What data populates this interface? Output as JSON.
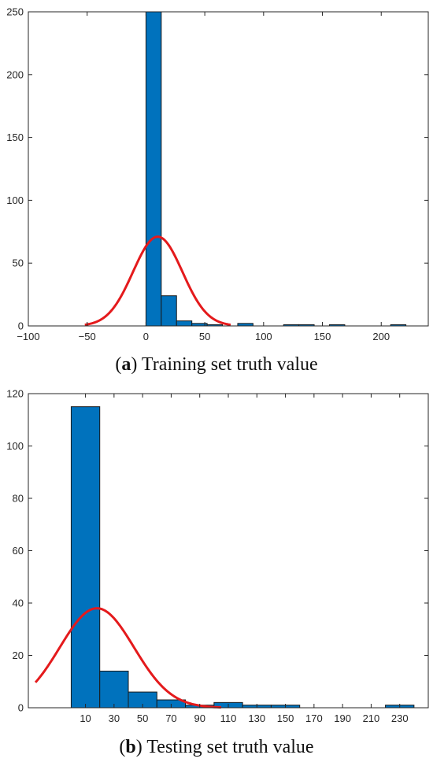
{
  "chart_data": [
    {
      "type": "bar",
      "caption_letter": "a",
      "caption_text": "Training set truth value",
      "xlim": [
        -100,
        240
      ],
      "ylim": [
        0,
        250
      ],
      "x_ticks": [
        -100,
        -50,
        0,
        50,
        100,
        150,
        200
      ],
      "x_tick_labels": [
        "−100",
        "−50",
        "0",
        "50",
        "100",
        "150",
        "200"
      ],
      "y_ticks": [
        0,
        50,
        100,
        150,
        200,
        250
      ],
      "y_tick_labels": [
        "0",
        "50",
        "100",
        "150",
        "200",
        "250"
      ],
      "bins": [
        {
          "x0": 0,
          "x1": 13,
          "count": 250
        },
        {
          "x0": 13,
          "x1": 26,
          "count": 24
        },
        {
          "x0": 26,
          "x1": 39,
          "count": 4
        },
        {
          "x0": 39,
          "x1": 52,
          "count": 2
        },
        {
          "x0": 52,
          "x1": 65,
          "count": 1
        },
        {
          "x0": 65,
          "x1": 78,
          "count": 0
        },
        {
          "x0": 78,
          "x1": 91,
          "count": 2
        },
        {
          "x0": 117,
          "x1": 130,
          "count": 1
        },
        {
          "x0": 130,
          "x1": 143,
          "count": 1
        },
        {
          "x0": 156,
          "x1": 169,
          "count": 1
        },
        {
          "x0": 208,
          "x1": 221,
          "count": 1
        }
      ],
      "fit_curve": {
        "type": "normal",
        "mean": 10,
        "peak": 71,
        "sigma": 21,
        "x_range": [
          -52,
          72
        ],
        "color": "#e41a1c"
      },
      "bar_color": "#0072bd",
      "grid": false
    },
    {
      "type": "bar",
      "caption_letter": "b",
      "caption_text": "Testing set truth value",
      "xlim": [
        -30,
        250
      ],
      "ylim": [
        0,
        120
      ],
      "x_ticks": [
        10,
        30,
        50,
        70,
        90,
        110,
        130,
        150,
        170,
        190,
        210,
        230
      ],
      "x_tick_labels": [
        "10",
        "30",
        "50",
        "70",
        "90",
        "110",
        "130",
        "150",
        "170",
        "190",
        "210",
        "230"
      ],
      "y_ticks": [
        0,
        20,
        40,
        60,
        80,
        100,
        120
      ],
      "y_tick_labels": [
        "0",
        "20",
        "40",
        "60",
        "80",
        "100",
        "120"
      ],
      "bins": [
        {
          "x0": 0,
          "x1": 20,
          "count": 115
        },
        {
          "x0": 20,
          "x1": 40,
          "count": 14
        },
        {
          "x0": 40,
          "x1": 60,
          "count": 6
        },
        {
          "x0": 60,
          "x1": 80,
          "count": 3
        },
        {
          "x0": 80,
          "x1": 100,
          "count": 1
        },
        {
          "x0": 100,
          "x1": 120,
          "count": 2
        },
        {
          "x0": 120,
          "x1": 140,
          "count": 1
        },
        {
          "x0": 140,
          "x1": 160,
          "count": 1
        },
        {
          "x0": 220,
          "x1": 240,
          "count": 1
        }
      ],
      "fit_curve": {
        "type": "normal",
        "mean": 18,
        "peak": 38,
        "sigma": 26,
        "x_range": [
          -25,
          105
        ],
        "color": "#e41a1c"
      },
      "bar_color": "#0072bd",
      "grid": false
    }
  ]
}
